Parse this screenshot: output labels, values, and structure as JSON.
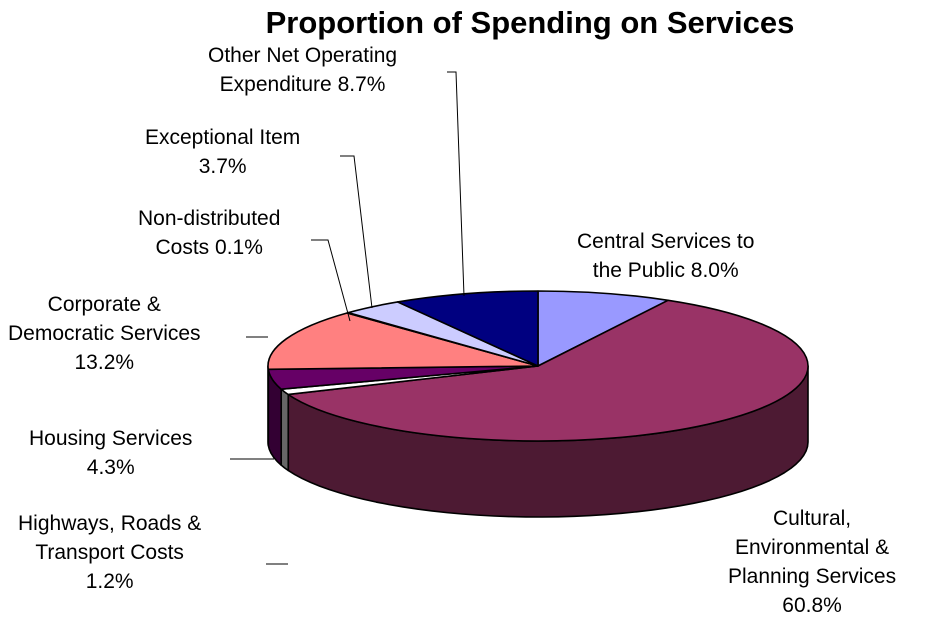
{
  "chart_data": {
    "type": "pie",
    "title": "Proportion of Spending on Services",
    "start_angle_deg": 90,
    "direction": "clockwise",
    "slices": [
      {
        "label": "Central Services to the Public",
        "value": 8.0,
        "value_label": "8.0%",
        "label_lines": [
          "Central Services to",
          "the Public 8.0%"
        ],
        "top_color": "#9999FF",
        "side_color": "#4D4D80"
      },
      {
        "label": "Cultural, Environmental & Planning Services",
        "value": 60.8,
        "value_label": "60.8%",
        "label_lines": [
          "Cultural,",
          "Environmental &",
          "Planning Services",
          "60.8%"
        ],
        "top_color": "#993366",
        "side_color": "#4D1A33"
      },
      {
        "label": "Highways, Roads & Transport Costs",
        "value": 1.2,
        "value_label": "1.2%",
        "label_lines": [
          "Highways, Roads &",
          "Transport Costs",
          "1.2%"
        ],
        "top_color": "#FFFFFF",
        "side_color": "#666666"
      },
      {
        "label": "Housing Services",
        "value": 4.3,
        "value_label": "4.3%",
        "label_lines": [
          "Housing Services",
          "4.3%"
        ],
        "top_color": "#660066",
        "side_color": "#330033"
      },
      {
        "label": "Corporate & Democratic Services",
        "value": 13.2,
        "value_label": "13.2%",
        "label_lines": [
          "Corporate &",
          "Democratic Services",
          "13.2%"
        ],
        "top_color": "#FF8080",
        "side_color": "#804040"
      },
      {
        "label": "Non-distributed Costs",
        "value": 0.1,
        "value_label": "0.1%",
        "label_lines": [
          "Non-distributed",
          "Costs 0.1%"
        ],
        "top_color": "#0066CC",
        "side_color": "#003366"
      },
      {
        "label": "Exceptional Item",
        "value": 3.7,
        "value_label": "3.7%",
        "label_lines": [
          "Exceptional Item",
          "3.7%"
        ],
        "top_color": "#CCCCFF",
        "side_color": "#666680"
      },
      {
        "label": "Other Net Operating Expenditure",
        "value": 8.7,
        "value_label": "8.7%",
        "label_lines": [
          "Other Net Operating",
          "Expenditure 8.7%"
        ],
        "top_color": "#000080",
        "side_color": "#000040"
      }
    ]
  }
}
